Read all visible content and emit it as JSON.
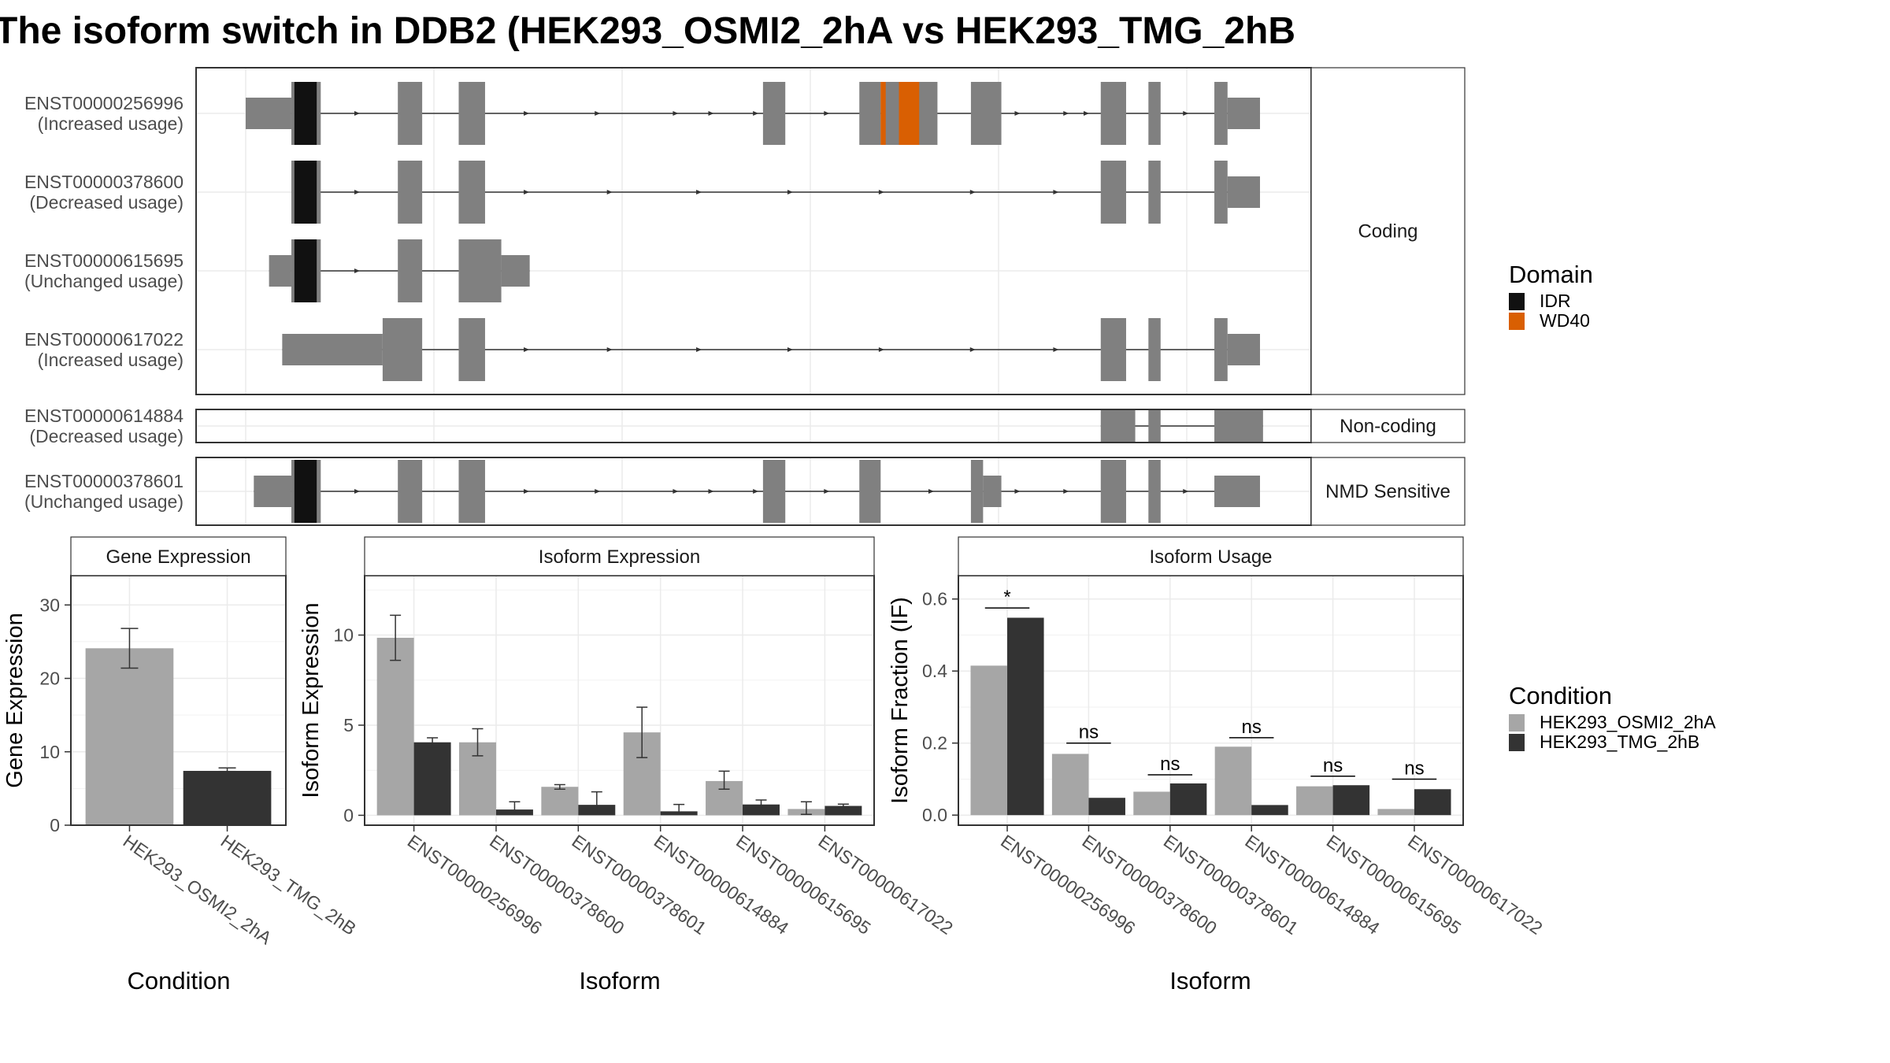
{
  "chart_data": {
    "title": "The isoform switch in DDB2 (HEK293_OSMI2_2hA vs HEK293_TMG_2hB",
    "colors": {
      "exon": "#808080",
      "idr": "#111111",
      "wd40": "#d95f02",
      "cond_a": "#a6a6a6",
      "cond_b": "#333333",
      "panel_border": "#333333",
      "strip_fill": "#ffffff",
      "grid": "#ebebeb"
    },
    "transcripts": {
      "coordinate_range": [
        0,
        1000
      ],
      "facets": [
        {
          "label": "Coding",
          "rows": [
            {
              "id": "ENST00000256996",
              "usage": "(Increased usage)",
              "exons": [
                [
                  0,
                  45,
                  "utr"
                ],
                [
                  45,
                  74,
                  "cds"
                ],
                [
                  150,
                  174,
                  "cds"
                ],
                [
                  210,
                  236,
                  "cds"
                ],
                [
                  510,
                  532,
                  "cds"
                ],
                [
                  605,
                  626,
                  "cds"
                ],
                [
                  626,
                  682,
                  "cds"
                ],
                [
                  715,
                  745,
                  "cds"
                ],
                [
                  843,
                  868,
                  "cds"
                ],
                [
                  890,
                  902,
                  "cds"
                ],
                [
                  955,
                  968,
                  "cds"
                ],
                [
                  968,
                  1000,
                  "utr"
                ]
              ],
              "domains": [
                [
                  48,
                  70,
                  "IDR"
                ],
                [
                  626,
                  631,
                  "WD40"
                ],
                [
                  644,
                  664,
                  "WD40"
                ]
              ],
              "arrows": [
                111,
                278,
                348,
                425,
                460,
                504,
                574,
                830,
                762,
                810,
                928
              ]
            },
            {
              "id": "ENST00000378600",
              "usage": "(Decreased usage)",
              "exons": [
                [
                  45,
                  74,
                  "cds"
                ],
                [
                  150,
                  174,
                  "cds"
                ],
                [
                  210,
                  236,
                  "cds"
                ],
                [
                  843,
                  868,
                  "cds"
                ],
                [
                  890,
                  902,
                  "cds"
                ],
                [
                  955,
                  968,
                  "cds"
                ],
                [
                  968,
                  1000,
                  "utr"
                ]
              ],
              "domains": [
                [
                  48,
                  70,
                  "IDR"
                ]
              ],
              "arrows": [
                111,
                278,
                360,
                448,
                538,
                628,
                718,
                800
              ]
            },
            {
              "id": "ENST00000615695",
              "usage": "(Unchanged usage)",
              "exons": [
                [
                  23,
                  45,
                  "utr"
                ],
                [
                  45,
                  74,
                  "cds"
                ],
                [
                  150,
                  174,
                  "cds"
                ],
                [
                  210,
                  252,
                  "cds"
                ],
                [
                  252,
                  280,
                  "utr"
                ]
              ],
              "domains": [
                [
                  48,
                  70,
                  "IDR"
                ]
              ],
              "arrows": [
                111
              ]
            },
            {
              "id": "ENST00000617022",
              "usage": "(Increased usage)",
              "exons": [
                [
                  36,
                  135,
                  "utr"
                ],
                [
                  135,
                  174,
                  "cds"
                ],
                [
                  210,
                  236,
                  "cds"
                ],
                [
                  843,
                  868,
                  "cds"
                ],
                [
                  890,
                  902,
                  "cds"
                ],
                [
                  955,
                  968,
                  "cds"
                ],
                [
                  968,
                  1000,
                  "utr"
                ]
              ],
              "domains": [],
              "arrows": [
                278,
                360,
                448,
                538,
                628,
                718,
                800
              ]
            }
          ]
        },
        {
          "label": "Non-coding",
          "rows": [
            {
              "id": "ENST00000614884",
              "usage": "(Decreased usage)",
              "exons": [
                [
                  843,
                  877,
                  "nc"
                ],
                [
                  890,
                  902,
                  "nc"
                ],
                [
                  955,
                  1003,
                  "nc"
                ]
              ],
              "domains": [],
              "arrows": []
            }
          ]
        },
        {
          "label": "NMD Sensitive",
          "rows": [
            {
              "id": "ENST00000378601",
              "usage": "(Unchanged usage)",
              "exons": [
                [
                  8,
                  45,
                  "utr"
                ],
                [
                  45,
                  74,
                  "cds"
                ],
                [
                  150,
                  174,
                  "cds"
                ],
                [
                  210,
                  236,
                  "cds"
                ],
                [
                  510,
                  532,
                  "cds"
                ],
                [
                  605,
                  626,
                  "cds"
                ],
                [
                  715,
                  727,
                  "cds"
                ],
                [
                  727,
                  745,
                  "utr"
                ],
                [
                  843,
                  868,
                  "cds"
                ],
                [
                  890,
                  902,
                  "cds"
                ],
                [
                  955,
                  1000,
                  "utr"
                ]
              ],
              "domains": [
                [
                  48,
                  70,
                  "IDR"
                ]
              ],
              "arrows": [
                111,
                278,
                348,
                425,
                460,
                504,
                574,
                677,
                762,
                810,
                928
              ]
            }
          ]
        }
      ]
    },
    "legends": {
      "domain": {
        "title": "Domain",
        "items": [
          {
            "label": "IDR",
            "color": "#111111"
          },
          {
            "label": "WD40",
            "color": "#d95f02"
          }
        ]
      },
      "condition": {
        "title": "Condition",
        "items": [
          {
            "label": "HEK293_OSMI2_2hA",
            "color": "#a6a6a6"
          },
          {
            "label": "HEK293_TMG_2hB",
            "color": "#333333"
          }
        ]
      }
    },
    "bar_panels": [
      {
        "type": "bar",
        "strip": "Gene Expression",
        "ylabel": "Gene Expression",
        "xlabel": "Condition",
        "ylim": [
          0,
          34
        ],
        "yticks": [
          0,
          10,
          20,
          30
        ],
        "categories": [
          "HEK293_OSMI2_2hA",
          "HEK293_TMG_2hB"
        ],
        "mode": "per_category",
        "values": [
          24.1,
          7.4
        ],
        "errors": [
          [
            21.4,
            26.8
          ],
          [
            7.1,
            7.8
          ]
        ],
        "colors": [
          "#a6a6a6",
          "#333333"
        ]
      },
      {
        "type": "bar",
        "strip": "Isoform Expression",
        "ylabel": "Isoform Expression",
        "xlabel": "Isoform",
        "ylim": [
          -0.55,
          13.3
        ],
        "yticks": [
          0,
          5,
          10
        ],
        "categories": [
          "ENST00000256996",
          "ENST00000378600",
          "ENST00000378601",
          "ENST00000614884",
          "ENST00000615695",
          "ENST00000617022"
        ],
        "mode": "dodged",
        "series": [
          {
            "name": "HEK293_OSMI2_2hA",
            "values": [
              9.85,
              4.05,
              1.58,
              4.6,
              1.9,
              0.35
            ],
            "errors": [
              [
                8.6,
                11.1
              ],
              [
                3.3,
                4.8
              ],
              [
                1.45,
                1.7
              ],
              [
                3.2,
                6.0
              ],
              [
                1.45,
                2.45
              ],
              [
                0.05,
                0.75
              ]
            ]
          },
          {
            "name": "HEK293_TMG_2hB",
            "values": [
              4.05,
              0.32,
              0.58,
              0.22,
              0.6,
              0.52
            ],
            "errors": [
              [
                3.8,
                4.3
              ],
              [
                0.05,
                0.75
              ],
              [
                0.05,
                1.3
              ],
              [
                0.05,
                0.6
              ],
              [
                0.45,
                0.85
              ],
              [
                0.4,
                0.62
              ]
            ]
          }
        ]
      },
      {
        "type": "bar",
        "strip": "Isoform Usage",
        "ylabel": "Isoform Fraction (IF)",
        "xlabel": "Isoform",
        "ylim": [
          -0.028,
          0.665
        ],
        "yticks": [
          0.0,
          0.2,
          0.4,
          0.6
        ],
        "ytick_labels": [
          "0.0",
          "0.2",
          "0.4",
          "0.6"
        ],
        "categories": [
          "ENST00000256996",
          "ENST00000378600",
          "ENST00000378601",
          "ENST00000614884",
          "ENST00000615695",
          "ENST00000617022"
        ],
        "mode": "dodged",
        "series": [
          {
            "name": "HEK293_OSMI2_2hA",
            "values": [
              0.415,
              0.17,
              0.065,
              0.19,
              0.08,
              0.017
            ]
          },
          {
            "name": "HEK293_TMG_2hB",
            "values": [
              0.548,
              0.048,
              0.088,
              0.028,
              0.083,
              0.072
            ]
          }
        ],
        "significance": [
          {
            "label": "*",
            "y": 0.575
          },
          {
            "label": "ns",
            "y": 0.2
          },
          {
            "label": "ns",
            "y": 0.112
          },
          {
            "label": "ns",
            "y": 0.215
          },
          {
            "label": "ns",
            "y": 0.108
          },
          {
            "label": "ns",
            "y": 0.1
          }
        ]
      }
    ]
  }
}
